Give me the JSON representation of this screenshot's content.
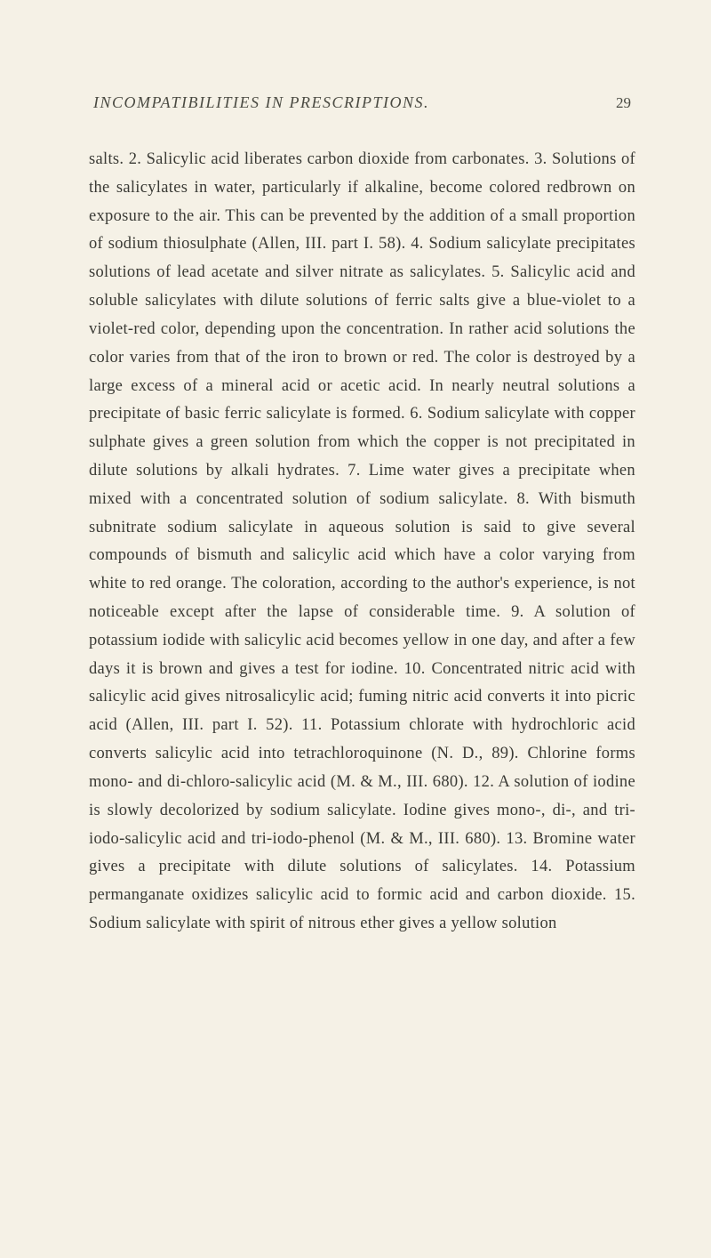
{
  "header": {
    "title": "INCOMPATIBILITIES IN PRESCRIPTIONS.",
    "page_number": "29"
  },
  "paragraph": {
    "text": "salts. 2. Salicylic acid liberates carbon dioxide from carbonates. 3. Solutions of the salicylates in water, particularly if alkaline, become colored redbrown on exposure to the air. This can be prevented by the addition of a small proportion of sodium thiosulphate (Allen, III. part I. 58). 4. Sodium salicylate precipitates solutions of lead acetate and silver nitrate as salicylates. 5. Salicylic acid and soluble salicylates with dilute solutions of ferric salts give a blue-violet to a violet-red color, depending upon the concentration. In rather acid solutions the color varies from that of the iron to brown or red. The color is destroyed by a large excess of a mineral acid or acetic acid. In nearly neutral solutions a precipitate of basic ferric salicylate is formed. 6. Sodium salicylate with copper sulphate gives a green solution from which the copper is not precipitated in dilute solutions by alkali hydrates. 7. Lime water gives a precipitate when mixed with a concentrated solution of sodium salicylate. 8. With bismuth subnitrate sodium salicylate in aqueous solution is said to give several compounds of bismuth and salicylic acid which have a color varying from white to red orange. The coloration, according to the author's experience, is not noticeable except after the lapse of considerable time. 9. A solution of potassium iodide with salicylic acid becomes yellow in one day, and after a few days it is brown and gives a test for iodine. 10. Concentrated nitric acid with salicylic acid gives nitrosalicylic acid; fuming nitric acid converts it into picric acid (Allen, III. part I. 52). 11. Potassium chlorate with hydrochloric acid converts salicylic acid into tetrachloroquinone (N. D., 89). Chlorine forms mono- and di-chloro-salicylic acid (M. & M., III. 680). 12. A solution of iodine is slowly decolorized by sodium salicylate. Iodine gives mono-, di-, and tri-iodo-salicylic acid and tri-iodo-phenol (M. & M., III. 680). 13. Bromine water gives a precipitate with dilute solutions of salicylates. 14. Potassium permanganate oxidizes salicylic acid to formic acid and carbon dioxide. 15. Sodium salicylate with spirit of nitrous ether gives a yellow solution"
  },
  "styling": {
    "background_color": "#f5f1e6",
    "text_color": "#3a3a35",
    "header_color": "#4a4a42",
    "body_font_size": 18.5,
    "header_font_size": 18,
    "line_height": 1.72,
    "font_family": "Georgia, Times New Roman, serif"
  }
}
